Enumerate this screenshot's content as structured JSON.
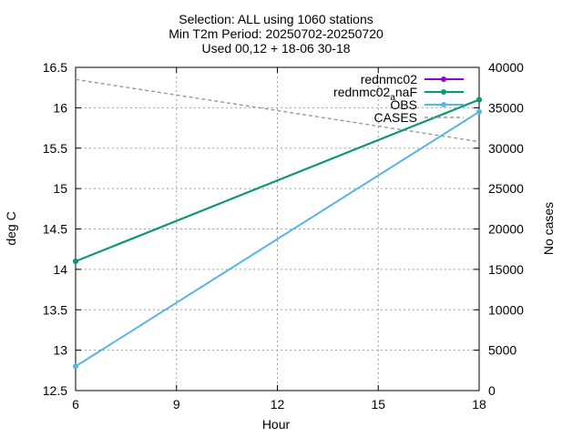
{
  "chart_data": {
    "type": "line",
    "title_lines": [
      "Selection: ALL using  1060 stations",
      "Min T2m   Period: 20250702-20250720",
      "Used 00,12 + 18-06 30-18"
    ],
    "xlabel": "Hour",
    "ylabel": "deg C",
    "y2label": "No cases",
    "xlim": [
      6,
      18
    ],
    "ylim": [
      12.5,
      16.5
    ],
    "y2lim": [
      0,
      40000
    ],
    "x_ticks": [
      6,
      9,
      12,
      15,
      18
    ],
    "y_ticks": [
      12.5,
      13,
      13.5,
      14,
      14.5,
      15,
      15.5,
      16,
      16.5
    ],
    "y2_ticks": [
      0,
      5000,
      10000,
      15000,
      20000,
      25000,
      30000,
      35000,
      40000
    ],
    "grid": true,
    "legend_position": "top-right",
    "series": [
      {
        "name": "rednmc02",
        "axis": "left",
        "color": "#9400d3",
        "x": [
          6,
          18
        ],
        "y": [
          14.1,
          16.1
        ]
      },
      {
        "name": "rednmc02_naF",
        "legend_text": "rednmc02",
        "legend_sub": "a",
        "legend_tail": "naF",
        "axis": "left",
        "color": "#009e73",
        "x": [
          6,
          18
        ],
        "y": [
          14.1,
          16.1
        ]
      },
      {
        "name": "OBS",
        "axis": "left",
        "color": "#56b4e9",
        "x": [
          6,
          18
        ],
        "y": [
          12.8,
          15.95
        ]
      },
      {
        "name": "CASES",
        "axis": "right",
        "color": "#999999",
        "dashed": true,
        "x": [
          6,
          18
        ],
        "y": [
          38500,
          30800
        ]
      }
    ]
  }
}
